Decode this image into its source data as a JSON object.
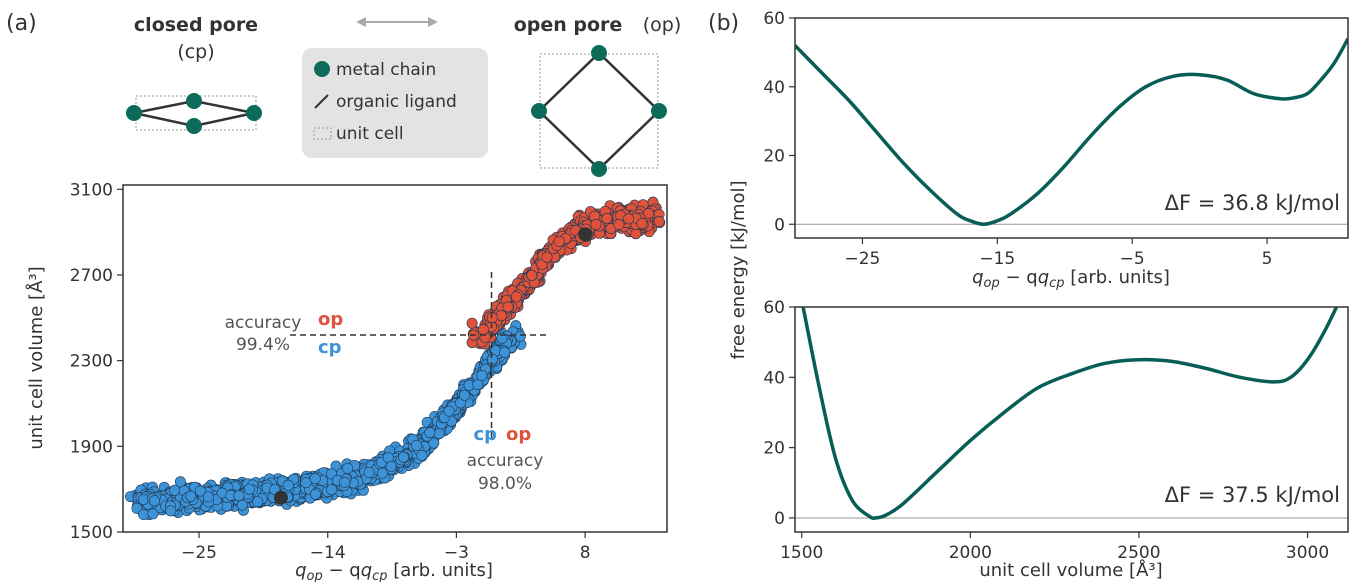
{
  "panel_a": {
    "label": "(a)",
    "closed_pore_title": "closed pore",
    "closed_pore_abbr": "(cp)",
    "open_pore_title": "open pore",
    "open_pore_abbr": "(op)",
    "legend": {
      "metal_chain": "metal chain",
      "organic_ligand": "organic ligand",
      "unit_cell": "unit cell"
    },
    "accuracy_left": {
      "label": "accuracy",
      "value": "99.4%",
      "upper": "op",
      "lower": "cp"
    },
    "accuracy_right": {
      "label": "accuracy",
      "value": "98.0%",
      "left": "cp",
      "right": "op"
    }
  },
  "panel_b": {
    "label": "(b)"
  },
  "colors": {
    "op": "#e0523a",
    "cp": "#3d93d8",
    "curve": "#075e55",
    "metal": "#0d6b5a",
    "ligand": "#333333",
    "legend_bg": "#e3e3e3"
  },
  "chart_data": [
    {
      "type": "scatter",
      "xlabel_main": "q",
      "xlabel_sub1": "op",
      "xlabel_mid": " − q",
      "xlabel_sub2": "cp",
      "xlabel_tail": "  [arb. units]",
      "ylabel": "unit cell volume  [Å³]",
      "xlim": [
        -31.5,
        15
      ],
      "ylim": [
        1500,
        3120
      ],
      "xticks": [
        -25,
        -14,
        -3,
        8
      ],
      "yticks": [
        1500,
        1900,
        2300,
        2700,
        3100
      ],
      "threshold_x": 0,
      "threshold_y": 2420,
      "series": [
        {
          "name": "cp",
          "center_points": [
            [
              -30,
              1640
            ],
            [
              -25,
              1660
            ],
            [
              -20,
              1680
            ],
            [
              -15,
              1710
            ],
            [
              -10,
              1780
            ],
            [
              -6,
              1900
            ],
            [
              -3,
              2080
            ],
            [
              -1,
              2220
            ],
            [
              0.5,
              2340
            ],
            [
              2,
              2420
            ]
          ]
        },
        {
          "name": "op",
          "center_points": [
            [
              -1,
              2420
            ],
            [
              1,
              2540
            ],
            [
              3,
              2660
            ],
            [
              5,
              2800
            ],
            [
              7,
              2900
            ],
            [
              9,
              2950
            ],
            [
              14,
              2970
            ]
          ]
        }
      ],
      "minima": [
        [
          -18,
          1660
        ],
        [
          8,
          2890
        ]
      ]
    },
    {
      "type": "line",
      "xlabel_main": "q",
      "xlabel_sub1": "op",
      "xlabel_mid": " − q",
      "xlabel_sub2": "cp",
      "xlabel_tail": "  [arb. units]",
      "ylabel": "free energy [kJ/mol]",
      "xlim": [
        -30,
        11
      ],
      "ylim": [
        -4,
        60
      ],
      "xticks": [
        -25,
        -15,
        -5,
        5
      ],
      "yticks": [
        0,
        20,
        40,
        60
      ],
      "annotation": "ΔF = 36.8 kJ/mol",
      "x": [
        -30,
        -28,
        -26,
        -24,
        -22,
        -20,
        -18,
        -17,
        -16,
        -15,
        -14,
        -12,
        -10,
        -8,
        -6,
        -4,
        -2,
        0,
        2,
        4,
        6,
        7,
        8,
        9,
        10,
        11
      ],
      "y": [
        52,
        44,
        36,
        27,
        18,
        10,
        3,
        1,
        0,
        1,
        3,
        9,
        17,
        26,
        34,
        40,
        43,
        43.5,
        42,
        38,
        36.5,
        36.8,
        38,
        42,
        47,
        54
      ]
    },
    {
      "type": "line",
      "xlabel": "unit cell volume  [Å³]",
      "ylabel": "free energy [kJ/mol]",
      "xlim": [
        1480,
        3120
      ],
      "ylim": [
        -4,
        60
      ],
      "xticks": [
        1500,
        2000,
        2500,
        3000
      ],
      "yticks": [
        0,
        20,
        40,
        60
      ],
      "annotation": "ΔF = 37.5 kJ/mol",
      "x": [
        1500,
        1550,
        1600,
        1650,
        1700,
        1720,
        1750,
        1800,
        1900,
        2000,
        2100,
        2200,
        2300,
        2400,
        2500,
        2600,
        2700,
        2800,
        2900,
        2950,
        3000,
        3050,
        3100
      ],
      "y": [
        62,
        38,
        17,
        5,
        0.5,
        0,
        0.8,
        4,
        13,
        22,
        30,
        37,
        41,
        44,
        45,
        44.5,
        42.5,
        40,
        38.7,
        40,
        45,
        53,
        64
      ]
    }
  ]
}
